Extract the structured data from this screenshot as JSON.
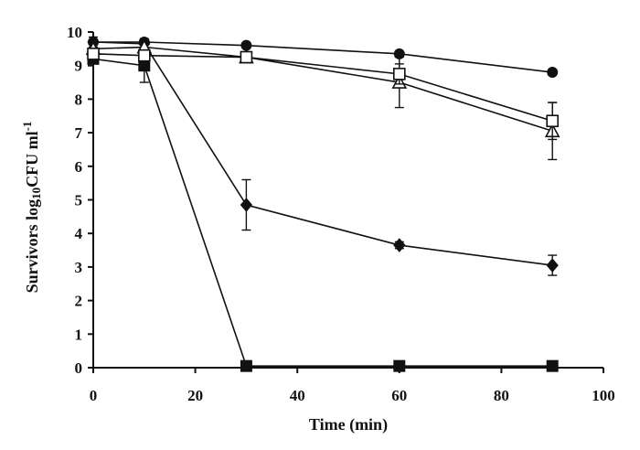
{
  "chart_data": {
    "type": "line",
    "xlabel": "Time (min)",
    "ylabel": "Survivors log10CFU ml-1",
    "ylabel_parts": {
      "base": "Survivors log",
      "sub": "10",
      "mid": "CFU ml",
      "sup": "-1"
    },
    "xlim": [
      0,
      100
    ],
    "ylim": [
      0,
      10
    ],
    "x_ticks": [
      0,
      20,
      40,
      60,
      80,
      100
    ],
    "y_ticks": [
      0,
      1,
      2,
      3,
      4,
      5,
      6,
      7,
      8,
      9,
      10
    ],
    "grid": false,
    "legend": "none",
    "series": [
      {
        "marker": "filled-circle",
        "x": [
          0,
          10,
          30,
          60,
          90
        ],
        "y": [
          9.7,
          9.7,
          9.6,
          9.35,
          8.8
        ],
        "err": [
          0,
          0,
          0,
          0,
          0
        ]
      },
      {
        "marker": "open-square",
        "x": [
          0,
          10,
          30,
          60,
          90
        ],
        "y": [
          9.35,
          9.3,
          9.25,
          8.75,
          7.35
        ],
        "err": [
          0,
          0,
          0,
          0.3,
          0.55
        ]
      },
      {
        "marker": "open-triangle",
        "x": [
          0,
          10,
          30,
          60,
          90
        ],
        "y": [
          9.5,
          9.55,
          9.25,
          8.5,
          7.05
        ],
        "err": [
          0,
          0,
          0,
          0.75,
          0.85
        ]
      },
      {
        "marker": "filled-diamond",
        "x": [
          0,
          10,
          30,
          60,
          90
        ],
        "y": [
          9.7,
          9.65,
          4.85,
          3.65,
          3.05
        ],
        "err": [
          0.15,
          0.15,
          0.75,
          0.1,
          0.3
        ]
      },
      {
        "marker": "filled-square",
        "x": [
          0,
          10,
          30,
          60,
          90
        ],
        "y": [
          9.2,
          9.0,
          0.05,
          0.05,
          0.05
        ],
        "err": [
          0,
          0.5,
          0,
          0,
          0
        ]
      }
    ]
  }
}
